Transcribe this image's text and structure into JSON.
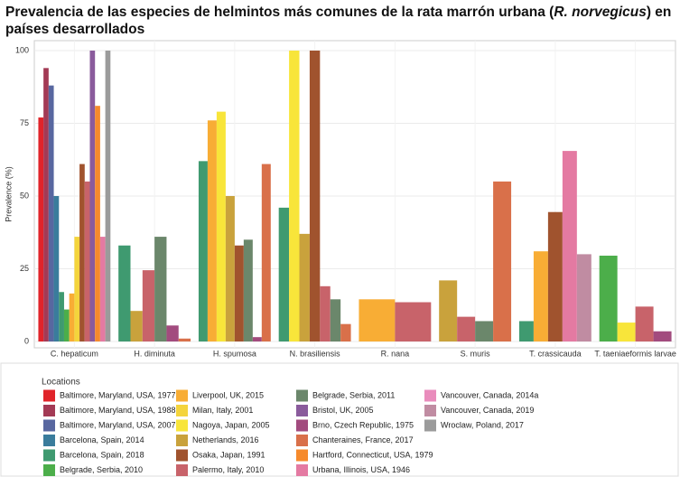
{
  "chart_data": {
    "type": "bar",
    "title": [
      "Prevalencia de las especies de helmintos más comunes de la rata marrón urbana (",
      "R. norvegicus",
      ") en países desarrollados"
    ],
    "y_label": "Prevalence (%)",
    "legend_title": "Locations",
    "categories": [
      "C. hepaticum",
      "H. diminuta",
      "H. spumosa",
      "N. brasiliensis",
      "R. nana",
      "S. muris",
      "T. crassicauda",
      "T. taeniaeformis larvae"
    ],
    "ylim": [
      0,
      100
    ],
    "yticks": [
      0,
      25,
      50,
      75,
      100
    ],
    "grid": true,
    "series": [
      {
        "name": "Baltimore, Maryland, USA, 1977",
        "color": "#e0242a",
        "values": [
          77,
          null,
          null,
          null,
          null,
          null,
          null,
          null
        ]
      },
      {
        "name": "Baltimore, Maryland, USA, 1988",
        "color": "#a33a55",
        "values": [
          94,
          null,
          null,
          null,
          null,
          null,
          null,
          null
        ]
      },
      {
        "name": "Baltimore, Maryland, USA, 2007",
        "color": "#5867a0",
        "values": [
          88,
          null,
          null,
          null,
          null,
          null,
          null,
          null
        ]
      },
      {
        "name": "Barcelona, Spain, 2014",
        "color": "#3a7c9c",
        "values": [
          50,
          null,
          null,
          null,
          null,
          null,
          null,
          null
        ]
      },
      {
        "name": "Barcelona, Spain, 2018",
        "color": "#3f9a70",
        "values": [
          17,
          33,
          62,
          46,
          null,
          null,
          7,
          null
        ]
      },
      {
        "name": "Belgrade, Serbia, 2010",
        "color": "#4cae4a",
        "values": [
          11,
          null,
          null,
          null,
          null,
          null,
          null,
          29.5
        ]
      },
      {
        "name": "Liverpool, UK, 2015",
        "color": "#f8ad35",
        "values": [
          16.5,
          null,
          76,
          null,
          14.5,
          null,
          31,
          null
        ]
      },
      {
        "name": "Milan, Italy, 2001",
        "color": "#f4d43c",
        "values": [
          36,
          null,
          null,
          null,
          null,
          null,
          null,
          null
        ]
      },
      {
        "name": "Nagoya, Japan, 2005",
        "color": "#f8e53a",
        "values": [
          null,
          null,
          79,
          100,
          null,
          null,
          null,
          6.5
        ]
      },
      {
        "name": "Netherlands, 2016",
        "color": "#c9a23c",
        "values": [
          null,
          10.5,
          50,
          37,
          null,
          21,
          null,
          null
        ]
      },
      {
        "name": "Osaka, Japan, 1991",
        "color": "#a0532e",
        "values": [
          61,
          null,
          33,
          100,
          null,
          null,
          44.5,
          null
        ]
      },
      {
        "name": "Palermo, Italy, 2010",
        "color": "#c8636a",
        "values": [
          55,
          24.5,
          null,
          19,
          13.5,
          8.5,
          null,
          12
        ]
      },
      {
        "name": "Belgrade, Serbia, 2011",
        "color": "#6b876b",
        "values": [
          null,
          36,
          35,
          14.5,
          null,
          7,
          null,
          null
        ]
      },
      {
        "name": "Bristol, UK, 2005",
        "color": "#8a5b9c",
        "values": [
          100,
          null,
          null,
          null,
          null,
          null,
          null,
          null
        ]
      },
      {
        "name": "Brno, Czech Republic, 1975",
        "color": "#a24b7e",
        "values": [
          null,
          5.5,
          1.5,
          null,
          null,
          null,
          null,
          3.5
        ]
      },
      {
        "name": "Chanteraines, France, 2017",
        "color": "#d9704a",
        "values": [
          null,
          1,
          61,
          6,
          null,
          55,
          null,
          null
        ]
      },
      {
        "name": "Hartford, Connecticut, USA, 1979",
        "color": "#f68a2c",
        "values": [
          81,
          null,
          null,
          null,
          null,
          null,
          null,
          null
        ]
      },
      {
        "name": "Urbana, Illinois, USA, 1946",
        "color": "#e47aa2",
        "values": [
          36,
          null,
          null,
          null,
          null,
          null,
          65.5,
          null
        ]
      },
      {
        "name": "Vancouver, Canada, 2014a",
        "color": "#e98cbc",
        "values": [
          null,
          null,
          null,
          null,
          null,
          null,
          null,
          null
        ]
      },
      {
        "name": "Vancouver, Canada, 2019",
        "color": "#c08ca2",
        "values": [
          null,
          null,
          null,
          null,
          null,
          null,
          30,
          null
        ]
      },
      {
        "name": "Wroclaw, Poland, 2017",
        "color": "#9b9b9b",
        "values": [
          100,
          null,
          null,
          null,
          null,
          null,
          null,
          null
        ]
      }
    ]
  }
}
